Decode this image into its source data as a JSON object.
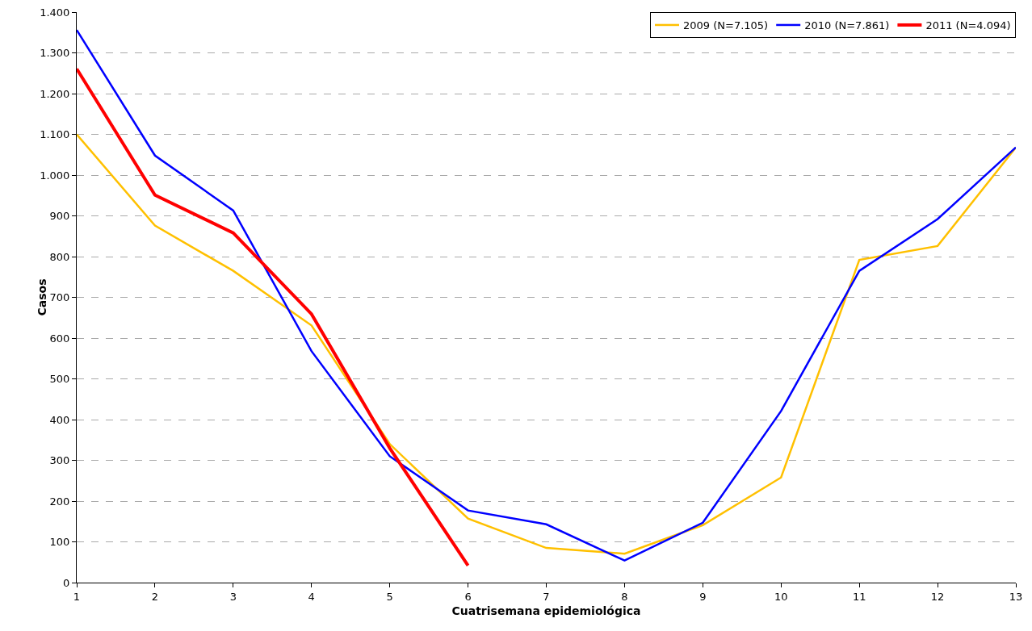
{
  "chart_data": {
    "type": "line",
    "xlabel": "Cuatrisemana epidemiológica",
    "ylabel": "Casos",
    "x": [
      1,
      2,
      3,
      4,
      5,
      6,
      7,
      8,
      9,
      10,
      11,
      12,
      13
    ],
    "xlim": [
      1,
      13
    ],
    "xticks": [
      1,
      2,
      3,
      4,
      5,
      6,
      7,
      8,
      9,
      10,
      11,
      12,
      13
    ],
    "ylim": [
      0,
      1400
    ],
    "yticks": [
      0,
      100,
      200,
      300,
      400,
      500,
      600,
      700,
      800,
      900,
      {
        "value": 1000,
        "label": "1.000"
      },
      {
        "value": 1100,
        "label": "1.100"
      },
      {
        "value": 1200,
        "label": "1.200"
      },
      {
        "value": 1300,
        "label": "1.300"
      },
      {
        "value": 1400,
        "label": "1.400"
      }
    ],
    "grid": "y",
    "legend": "top right",
    "marker": "none",
    "line_style": "solid",
    "series": [
      {
        "name": "2009 (N=7.105)",
        "color": "#ffc000",
        "values": [
          1100,
          876,
          765,
          631,
          340,
          157,
          85,
          71,
          141,
          258,
          792,
          826,
          1068
        ]
      },
      {
        "name": "2010 (N=7.861)",
        "color": "#0000ff",
        "values": [
          1356,
          1048,
          913,
          568,
          310,
          177,
          143,
          54,
          147,
          421,
          765,
          892,
          1068
        ]
      },
      {
        "name": "2011 (N=4.094)",
        "color": "#ff0000",
        "values": [
          1261,
          951,
          858,
          659,
          330,
          42,
          null,
          null,
          null,
          null,
          null,
          null,
          null
        ]
      }
    ]
  }
}
